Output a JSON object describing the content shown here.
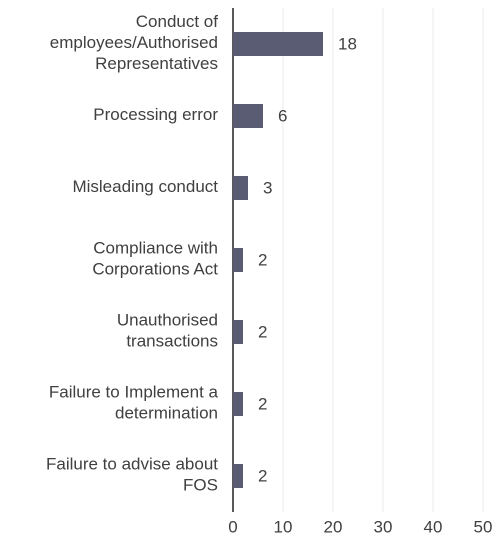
{
  "chart_data": {
    "type": "barh",
    "categories": [
      "Conduct of\nemployees/Authorised\nRepresentatives",
      "Processing error",
      "Misleading conduct",
      "Compliance with\nCorporations Act",
      "Unauthorised\ntransactions",
      "Failure to Implement a\ndetermination",
      "Failure to advise about\nFOS"
    ],
    "values": [
      18,
      6,
      3,
      2,
      2,
      2,
      2
    ],
    "color": "#595c72",
    "xlim": [
      0,
      50
    ],
    "xticks": [
      0,
      10,
      20,
      30,
      40,
      50
    ],
    "grid": true
  }
}
